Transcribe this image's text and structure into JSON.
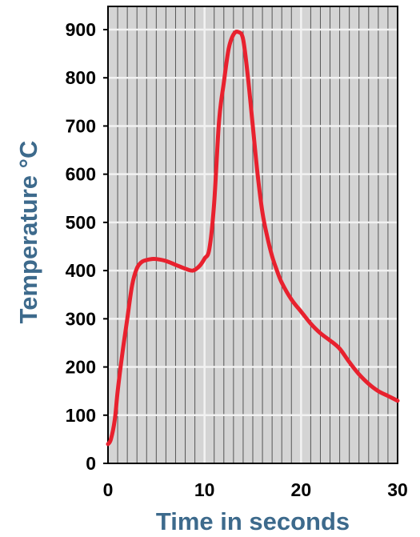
{
  "chart_data": {
    "type": "line",
    "title": "",
    "xlabel": "Time in seconds",
    "ylabel": "Temperature °C",
    "xlim": [
      0,
      30
    ],
    "ylim": [
      0,
      900
    ],
    "x_ticks": [
      0,
      10,
      20,
      30
    ],
    "y_ticks": [
      0,
      100,
      200,
      300,
      400,
      500,
      600,
      700,
      800,
      900
    ],
    "grid": true,
    "legend": "none",
    "colors": {
      "line": "#e8212e",
      "axis_label": "#3d6a8c",
      "plot_bg": "#d4d4d4",
      "grid": "#555555",
      "major_grid": "#f2f2f2"
    },
    "series": [
      {
        "x": [
          0,
          0.3,
          0.7,
          1,
          1.5,
          2,
          2.5,
          3,
          3.5,
          4,
          4.5,
          5,
          6,
          7,
          8,
          8.8,
          9.5,
          10,
          10.5,
          11,
          11.5,
          12,
          12.5,
          13,
          13.5,
          14,
          14.5,
          15,
          15.5,
          16,
          16.5,
          17,
          17.5,
          18,
          19,
          20,
          21,
          22,
          23,
          24,
          25,
          26,
          27,
          28,
          29,
          30
        ],
        "y": [
          40,
          50,
          90,
          150,
          230,
          300,
          370,
          405,
          418,
          422,
          424,
          424,
          420,
          412,
          404,
          400,
          410,
          425,
          445,
          540,
          710,
          790,
          860,
          890,
          895,
          880,
          800,
          700,
          600,
          520,
          470,
          430,
          400,
          375,
          340,
          315,
          290,
          270,
          255,
          238,
          210,
          185,
          165,
          150,
          140,
          130
        ]
      }
    ]
  }
}
